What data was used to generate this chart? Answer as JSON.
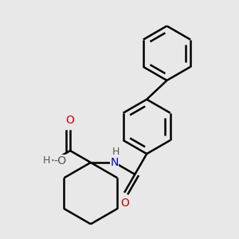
{
  "background_color": "#e8e8e8",
  "line_color": "#000000",
  "bond_lw": 1.8,
  "figsize": [
    3.0,
    3.0
  ],
  "dpi": 100,
  "xlim": [
    0.0,
    1.0
  ],
  "ylim": [
    0.0,
    1.0
  ],
  "r_benz": 0.115,
  "r_chex": 0.13,
  "font_size_atom": 10,
  "font_size_h": 9,
  "color_O": "#cc0000",
  "color_N": "#0000cc",
  "color_gray": "#555555"
}
